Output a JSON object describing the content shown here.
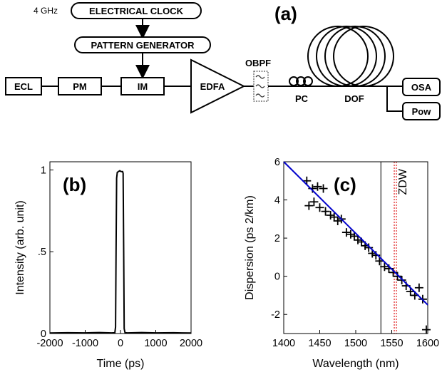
{
  "setup": {
    "clock_freq": "4 GHz",
    "electrical_clock": "ELECTRICAL CLOCK",
    "pattern_generator": "PATTERN GENERATOR",
    "ecl": "ECL",
    "pm": "PM",
    "im": "IM",
    "edfa": "EDFA",
    "obpf": "OBPF",
    "pc": "PC",
    "dof": "DOF",
    "osa": "OSA",
    "pow": "Pow",
    "panel_label": "(a)"
  },
  "chart_data": [
    {
      "type": "line",
      "panel_label": "(b)",
      "xlabel": "Time (ps)",
      "ylabel": "Intensity (arb. unit)",
      "xlim": [
        -2000,
        2000
      ],
      "ylim": [
        0,
        1.05
      ],
      "xticks": [
        -2000,
        -1000,
        0,
        1000,
        2000
      ],
      "xtick_labels": [
        "-2000",
        "-1000",
        "0",
        "1000",
        "2000"
      ],
      "yticks": [
        0,
        0.5,
        1
      ],
      "ytick_labels": [
        "0",
        ".5",
        "1"
      ],
      "series": [
        {
          "x": [
            -2000,
            -1500,
            -1000,
            -600,
            -250,
            -160,
            -140,
            -125,
            -110,
            -90,
            -60,
            -20,
            20,
            60,
            75,
            90,
            105,
            130,
            200,
            600,
            1000,
            1500,
            2000
          ],
          "y": [
            0.003,
            0.005,
            0.004,
            0.006,
            0.004,
            0.005,
            0.04,
            0.5,
            0.95,
            0.985,
            0.99,
            0.995,
            0.99,
            0.99,
            0.98,
            0.5,
            0.03,
            0.005,
            0.004,
            0.006,
            0.004,
            0.005,
            0.003
          ]
        }
      ]
    },
    {
      "type": "scatter",
      "panel_label": "(c)",
      "xlabel": "Wavelength (nm)",
      "ylabel": "Dispersion (ps  2/km)",
      "xlim": [
        1400,
        1600
      ],
      "ylim": [
        -3,
        6
      ],
      "xticks": [
        1400,
        1450,
        1500,
        1550,
        1600
      ],
      "xtick_labels": [
        "1400",
        "1450",
        "1500",
        "1550",
        "1600"
      ],
      "yticks": [
        -2,
        0,
        2,
        4,
        6
      ],
      "ytick_labels": [
        "-2",
        "0",
        "2",
        "4",
        "6"
      ],
      "annotation": "ZDW",
      "zdw_wavelength": 1555,
      "pump_wavelength": 1535,
      "marker_color": "#000000",
      "fit_color": "#0000cc",
      "zdw_color": "#e02020",
      "pump_line_color": "#9a9a9a",
      "fit": {
        "x": [
          1400,
          1600
        ],
        "y": [
          6.0,
          -1.5
        ]
      },
      "points": {
        "x": [
          1432,
          1440,
          1447,
          1455,
          1435,
          1442,
          1450,
          1458,
          1465,
          1470,
          1475,
          1480,
          1487,
          1493,
          1498,
          1503,
          1508,
          1513,
          1518,
          1523,
          1528,
          1533,
          1540,
          1546,
          1552,
          1558,
          1564,
          1570,
          1576,
          1582,
          1588,
          1593,
          1598
        ],
        "y": [
          5.0,
          4.6,
          4.7,
          4.6,
          3.7,
          3.9,
          3.6,
          3.4,
          3.2,
          3.1,
          2.9,
          3.0,
          2.3,
          2.2,
          2.1,
          1.9,
          1.8,
          1.6,
          1.5,
          1.2,
          1.1,
          0.8,
          0.5,
          0.4,
          0.2,
          0.0,
          -0.2,
          -0.5,
          -0.8,
          -1.0,
          -0.6,
          -1.2,
          -2.8
        ]
      }
    }
  ]
}
